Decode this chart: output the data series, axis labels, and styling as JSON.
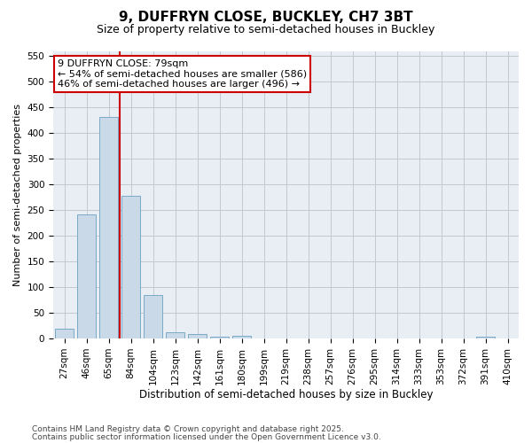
{
  "title": "9, DUFFRYN CLOSE, BUCKLEY, CH7 3BT",
  "subtitle": "Size of property relative to semi-detached houses in Buckley",
  "xlabel": "Distribution of semi-detached houses by size in Buckley",
  "ylabel": "Number of semi-detached properties",
  "categories": [
    "27sqm",
    "46sqm",
    "65sqm",
    "84sqm",
    "104sqm",
    "123sqm",
    "142sqm",
    "161sqm",
    "180sqm",
    "199sqm",
    "219sqm",
    "238sqm",
    "257sqm",
    "276sqm",
    "295sqm",
    "314sqm",
    "333sqm",
    "353sqm",
    "372sqm",
    "391sqm",
    "410sqm"
  ],
  "values": [
    20,
    242,
    432,
    278,
    85,
    13,
    8,
    3,
    5,
    0,
    0,
    0,
    0,
    0,
    0,
    0,
    0,
    0,
    0,
    3,
    0
  ],
  "bar_color": "#c9d9e8",
  "bar_edge_color": "#7aaac8",
  "grid_color": "#c0c8d0",
  "background_color": "#e8eef4",
  "vline_color": "#cc0000",
  "annotation_line1": "9 DUFFRYN CLOSE: 79sqm",
  "annotation_line2": "← 54% of semi-detached houses are smaller (586)",
  "annotation_line3": "46% of semi-detached houses are larger (496) →",
  "annotation_box_color": "#cc0000",
  "ylim": [
    0,
    560
  ],
  "yticks": [
    0,
    50,
    100,
    150,
    200,
    250,
    300,
    350,
    400,
    450,
    500,
    550
  ],
  "footnote1": "Contains HM Land Registry data © Crown copyright and database right 2025.",
  "footnote2": "Contains public sector information licensed under the Open Government Licence v3.0.",
  "title_fontsize": 11,
  "subtitle_fontsize": 9,
  "tick_fontsize": 7.5,
  "ylabel_fontsize": 8,
  "xlabel_fontsize": 8.5,
  "footnote_fontsize": 6.5,
  "annotation_fontsize": 8
}
